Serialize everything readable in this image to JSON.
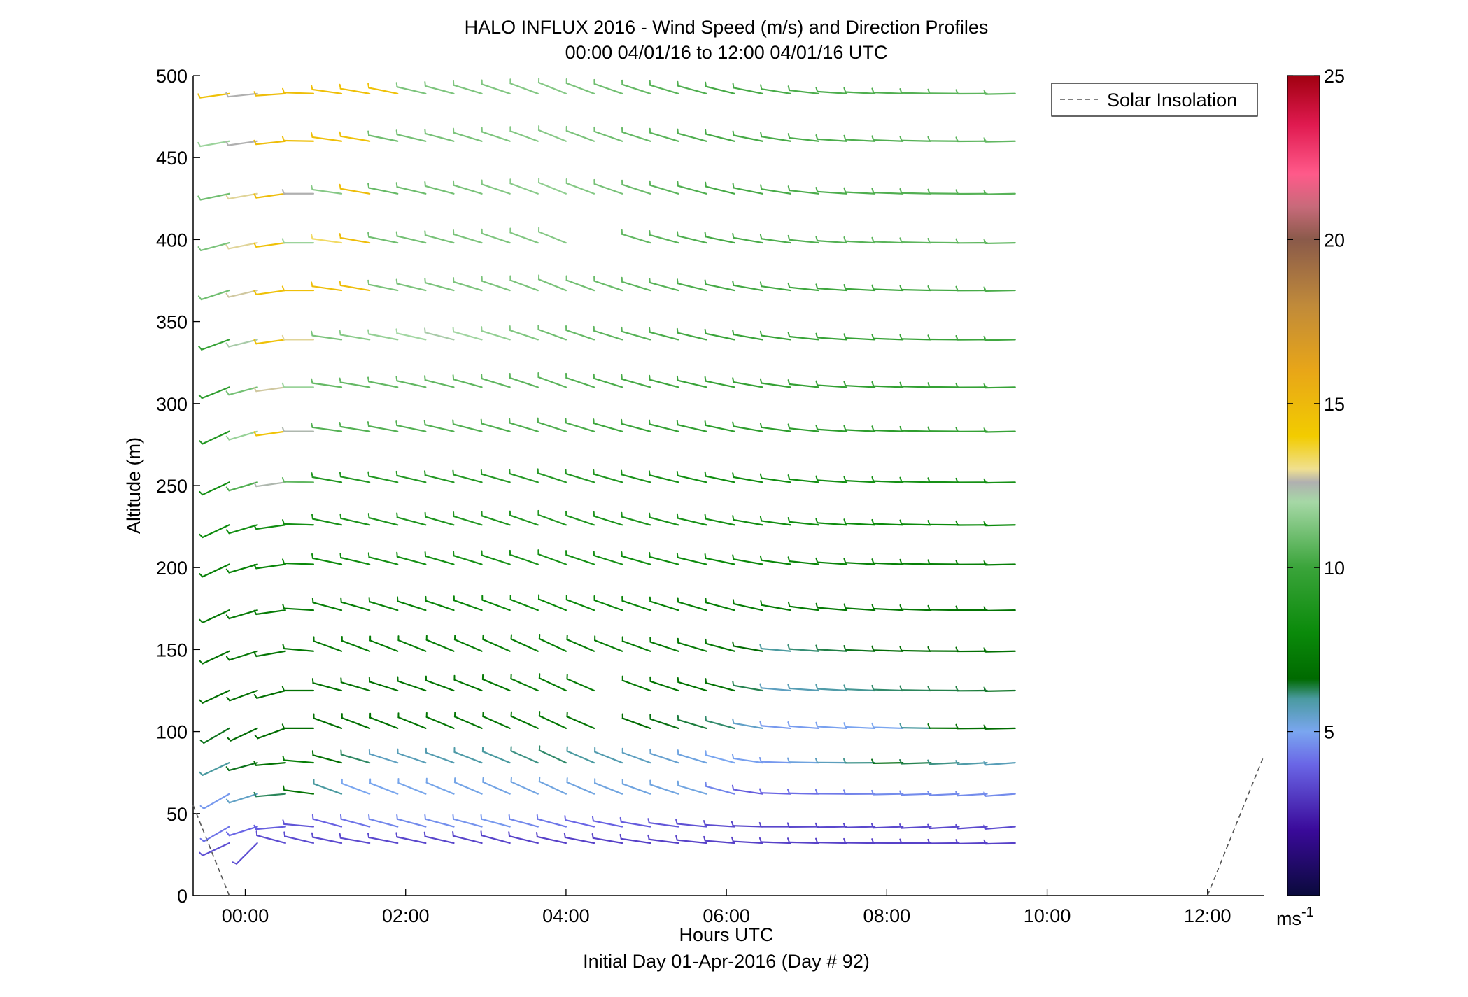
{
  "chart_data": {
    "type": "wind-barb",
    "title": "HALO INFLUX 2016 - Wind Speed (m/s) and Direction Profiles",
    "subtitle": "00:00 04/01/16 to 12:00 04/01/16  UTC",
    "xlabel": "Hours UTC",
    "xlabel2": "Initial Day 01-Apr-2016 (Day # 92)",
    "ylabel": "Altitude (m)",
    "xlim": [
      -0.65,
      12.7
    ],
    "ylim": [
      0,
      500
    ],
    "x_ticks": [
      0,
      2,
      4,
      6,
      8,
      10,
      12
    ],
    "x_tick_labels": [
      "00:00",
      "02:00",
      "04:00",
      "06:00",
      "08:00",
      "10:00",
      "12:00"
    ],
    "y_ticks": [
      0,
      50,
      100,
      150,
      200,
      250,
      300,
      350,
      400,
      450,
      500
    ],
    "y_tick_labels": [
      "0",
      "50",
      "100",
      "150",
      "200",
      "250",
      "300",
      "350",
      "400",
      "450",
      "500"
    ],
    "legend": {
      "label": "Solar Insolation",
      "placement": "top-right",
      "style": "dashed"
    },
    "colorbar": {
      "min": 0,
      "max": 25,
      "ticks": [
        5,
        10,
        15,
        20,
        25
      ],
      "tick_labels": [
        "5",
        "10",
        "15",
        "20",
        "25"
      ],
      "unit": "ms",
      "unit_exp": "-1",
      "stops": [
        [
          0,
          "#0a0a3c"
        ],
        [
          2,
          "#3a0a9a"
        ],
        [
          4,
          "#6a66e6"
        ],
        [
          5,
          "#7aa6f0"
        ],
        [
          6,
          "#4a9aa0"
        ],
        [
          6.6,
          "#006a00"
        ],
        [
          8,
          "#0a8a0a"
        ],
        [
          10,
          "#3aa43a"
        ],
        [
          12,
          "#a6d8a6"
        ],
        [
          12.6,
          "#b0b0b0"
        ],
        [
          13,
          "#f0e090"
        ],
        [
          14,
          "#f2cc00"
        ],
        [
          16,
          "#e8a618"
        ],
        [
          18,
          "#c08a3a"
        ],
        [
          20,
          "#8a5a4a"
        ],
        [
          21,
          "#c86a7a"
        ],
        [
          22,
          "#ff5a8a"
        ],
        [
          23.5,
          "#e01a50"
        ],
        [
          25,
          "#a00010"
        ]
      ]
    },
    "solar_insolation": {
      "left": [
        [
          -0.65,
          55
        ],
        [
          -0.2,
          0
        ]
      ],
      "right": [
        [
          12.0,
          0
        ],
        [
          12.7,
          85
        ]
      ]
    },
    "profile_times": [
      -0.2,
      0.15,
      0.5,
      0.85,
      1.2,
      1.55,
      1.9,
      2.25,
      2.6,
      2.95,
      3.3,
      3.65,
      4.0,
      4.35,
      4.7,
      5.05,
      5.4,
      5.75,
      6.1,
      6.45,
      6.8,
      7.15,
      7.5,
      7.85,
      8.2,
      8.55,
      8.9,
      9.25,
      9.6
    ],
    "altitudes": [
      32,
      42,
      62,
      81,
      102,
      125,
      149,
      174,
      202,
      226,
      252,
      283,
      310,
      339,
      369,
      398,
      428,
      460,
      489
    ],
    "gaps": [
      [
        398,
        [
          13,
          14
        ]
      ],
      [
        125,
        [
          14
        ]
      ],
      [
        102,
        [
          14
        ]
      ]
    ],
    "speed_by_altitude": [
      [
        [
          0,
          3.5
        ],
        [
          12,
          3.2
        ],
        [
          29,
          3.2
        ]
      ],
      [
        [
          0,
          4.2
        ],
        [
          3,
          3.6
        ],
        [
          6,
          4.5
        ],
        [
          10,
          4.8
        ],
        [
          13,
          4.0
        ],
        [
          19,
          3.3
        ],
        [
          29,
          3.4
        ]
      ],
      [
        [
          0,
          4.8
        ],
        [
          3,
          7.0
        ],
        [
          5,
          5.0
        ],
        [
          12,
          5.2
        ],
        [
          17,
          5.2
        ],
        [
          19,
          3.8
        ],
        [
          24,
          4.6
        ],
        [
          29,
          4.6
        ]
      ],
      [
        [
          0,
          6.0
        ],
        [
          3,
          7.5
        ],
        [
          6,
          5.6
        ],
        [
          12,
          6.2
        ],
        [
          18,
          5.0
        ],
        [
          20,
          4.8
        ],
        [
          24,
          6.5
        ],
        [
          29,
          5.5
        ]
      ],
      [
        [
          0,
          6.5
        ],
        [
          6,
          7.0
        ],
        [
          12,
          7.2
        ],
        [
          18,
          6.2
        ],
        [
          20,
          4.8
        ],
        [
          24,
          5.0
        ],
        [
          26,
          7.0
        ],
        [
          29,
          6.5
        ]
      ],
      [
        [
          0,
          6.8
        ],
        [
          6,
          7.0
        ],
        [
          12,
          7.4
        ],
        [
          18,
          7.0
        ],
        [
          20,
          5.6
        ],
        [
          24,
          6.2
        ],
        [
          29,
          6.5
        ]
      ],
      [
        [
          0,
          7.0
        ],
        [
          6,
          7.4
        ],
        [
          12,
          7.5
        ],
        [
          18,
          7.2
        ],
        [
          20,
          6.0
        ],
        [
          23,
          6.5
        ],
        [
          29,
          7.0
        ]
      ],
      [
        [
          0,
          7.2
        ],
        [
          6,
          7.6
        ],
        [
          12,
          8.0
        ],
        [
          18,
          7.5
        ],
        [
          24,
          7.2
        ],
        [
          29,
          7.0
        ]
      ],
      [
        [
          0,
          7.5
        ],
        [
          6,
          8.4
        ],
        [
          12,
          8.6
        ],
        [
          18,
          8.0
        ],
        [
          24,
          7.6
        ],
        [
          29,
          7.5
        ]
      ],
      [
        [
          0,
          8.0
        ],
        [
          6,
          8.8
        ],
        [
          12,
          9.0
        ],
        [
          18,
          8.4
        ],
        [
          24,
          8.0
        ],
        [
          29,
          8.0
        ]
      ],
      [
        [
          0,
          8.2
        ],
        [
          2,
          12.5
        ],
        [
          4,
          9.0
        ],
        [
          12,
          9.2
        ],
        [
          18,
          8.2
        ],
        [
          24,
          8.4
        ],
        [
          29,
          8.6
        ]
      ],
      [
        [
          0,
          9.0
        ],
        [
          2,
          14.5
        ],
        [
          4,
          10.5
        ],
        [
          12,
          10.4
        ],
        [
          18,
          9.5
        ],
        [
          24,
          9.4
        ],
        [
          29,
          10.0
        ]
      ],
      [
        [
          0,
          9.4
        ],
        [
          2,
          12.8
        ],
        [
          4,
          10.8
        ],
        [
          12,
          10.6
        ],
        [
          18,
          9.8
        ],
        [
          24,
          9.6
        ],
        [
          29,
          10.0
        ]
      ],
      [
        [
          0,
          9.8
        ],
        [
          2,
          14.6
        ],
        [
          4,
          11.2
        ],
        [
          8,
          12.2
        ],
        [
          12,
          11.0
        ],
        [
          18,
          10.0
        ],
        [
          24,
          9.8
        ],
        [
          29,
          10.2
        ]
      ],
      [
        [
          0,
          11.0
        ],
        [
          2,
          14.6
        ],
        [
          5,
          14.8
        ],
        [
          6,
          11.2
        ],
        [
          12,
          11.2
        ],
        [
          18,
          10.2
        ],
        [
          24,
          10.0
        ],
        [
          29,
          10.4
        ]
      ],
      [
        [
          0,
          11.2
        ],
        [
          2,
          14.6
        ],
        [
          3,
          11.8
        ],
        [
          5,
          14.8
        ],
        [
          6,
          11.0
        ],
        [
          12,
          11.4
        ],
        [
          18,
          10.2
        ],
        [
          24,
          10.6
        ],
        [
          29,
          10.8
        ]
      ],
      [
        [
          0,
          11.0
        ],
        [
          2,
          14.8
        ],
        [
          3,
          12.6
        ],
        [
          4,
          11.4
        ],
        [
          5,
          14.8
        ],
        [
          6,
          10.8
        ],
        [
          12,
          11.6
        ],
        [
          18,
          10.2
        ],
        [
          24,
          10.4
        ],
        [
          29,
          10.6
        ]
      ],
      [
        [
          0,
          11.8
        ],
        [
          1,
          12.6
        ],
        [
          2,
          14.8
        ],
        [
          5,
          14.6
        ],
        [
          6,
          11.0
        ],
        [
          12,
          11.4
        ],
        [
          18,
          10.2
        ],
        [
          24,
          10.4
        ],
        [
          29,
          10.8
        ]
      ],
      [
        [
          0,
          14.6
        ],
        [
          1,
          12.6
        ],
        [
          2,
          14.8
        ],
        [
          6,
          14.6
        ],
        [
          7,
          11.2
        ],
        [
          12,
          11.4
        ],
        [
          18,
          10.2
        ],
        [
          24,
          10.4
        ],
        [
          29,
          10.8
        ]
      ]
    ],
    "direction_by_altitude": [
      [
        [
          0,
          245
        ],
        [
          1,
          225
        ],
        [
          2,
          285
        ],
        [
          5,
          280
        ],
        [
          10,
          285
        ],
        [
          20,
          272
        ],
        [
          29,
          268
        ]
      ],
      [
        [
          0,
          240
        ],
        [
          2,
          265
        ],
        [
          4,
          285
        ],
        [
          12,
          285
        ],
        [
          20,
          270
        ],
        [
          29,
          265
        ]
      ],
      [
        [
          0,
          240
        ],
        [
          2,
          265
        ],
        [
          4,
          290
        ],
        [
          12,
          295
        ],
        [
          18,
          285
        ],
        [
          20,
          272
        ],
        [
          29,
          265
        ]
      ],
      [
        [
          0,
          245
        ],
        [
          2,
          265
        ],
        [
          4,
          285
        ],
        [
          12,
          295
        ],
        [
          18,
          285
        ],
        [
          20,
          272
        ],
        [
          29,
          265
        ]
      ],
      [
        [
          0,
          240
        ],
        [
          2,
          250
        ],
        [
          4,
          290
        ],
        [
          12,
          295
        ],
        [
          18,
          285
        ],
        [
          20,
          275
        ],
        [
          29,
          268
        ]
      ],
      [
        [
          0,
          245
        ],
        [
          2,
          255
        ],
        [
          4,
          285
        ],
        [
          12,
          295
        ],
        [
          18,
          285
        ],
        [
          20,
          275
        ],
        [
          29,
          268
        ]
      ],
      [
        [
          0,
          245
        ],
        [
          2,
          260
        ],
        [
          4,
          290
        ],
        [
          12,
          295
        ],
        [
          18,
          285
        ],
        [
          20,
          275
        ],
        [
          29,
          268
        ]
      ],
      [
        [
          0,
          245
        ],
        [
          2,
          262
        ],
        [
          4,
          285
        ],
        [
          12,
          292
        ],
        [
          18,
          285
        ],
        [
          22,
          275
        ],
        [
          29,
          268
        ]
      ],
      [
        [
          0,
          245
        ],
        [
          2,
          262
        ],
        [
          4,
          282
        ],
        [
          12,
          290
        ],
        [
          18,
          282
        ],
        [
          22,
          274
        ],
        [
          29,
          268
        ]
      ],
      [
        [
          0,
          245
        ],
        [
          2,
          262
        ],
        [
          4,
          282
        ],
        [
          12,
          290
        ],
        [
          18,
          282
        ],
        [
          22,
          274
        ],
        [
          29,
          268
        ]
      ],
      [
        [
          0,
          245
        ],
        [
          2,
          262
        ],
        [
          4,
          280
        ],
        [
          12,
          288
        ],
        [
          18,
          282
        ],
        [
          22,
          274
        ],
        [
          29,
          268
        ]
      ],
      [
        [
          0,
          245
        ],
        [
          2,
          262
        ],
        [
          4,
          278
        ],
        [
          12,
          288
        ],
        [
          18,
          282
        ],
        [
          22,
          274
        ],
        [
          29,
          268
        ]
      ],
      [
        [
          0,
          248
        ],
        [
          2,
          262
        ],
        [
          4,
          278
        ],
        [
          12,
          290
        ],
        [
          18,
          282
        ],
        [
          22,
          274
        ],
        [
          29,
          268
        ]
      ],
      [
        [
          0,
          250
        ],
        [
          2,
          262
        ],
        [
          4,
          278
        ],
        [
          12,
          290
        ],
        [
          18,
          282
        ],
        [
          22,
          274
        ],
        [
          29,
          268
        ]
      ],
      [
        [
          0,
          252
        ],
        [
          2,
          262
        ],
        [
          4,
          278
        ],
        [
          12,
          292
        ],
        [
          18,
          282
        ],
        [
          22,
          274
        ],
        [
          29,
          268
        ]
      ],
      [
        [
          0,
          255
        ],
        [
          2,
          262
        ],
        [
          4,
          278
        ],
        [
          12,
          292
        ],
        [
          18,
          282
        ],
        [
          22,
          274
        ],
        [
          29,
          268
        ]
      ],
      [
        [
          0,
          258
        ],
        [
          2,
          262
        ],
        [
          4,
          278
        ],
        [
          12,
          292
        ],
        [
          18,
          284
        ],
        [
          22,
          274
        ],
        [
          29,
          268
        ]
      ],
      [
        [
          0,
          260
        ],
        [
          2,
          264
        ],
        [
          4,
          278
        ],
        [
          12,
          292
        ],
        [
          18,
          284
        ],
        [
          22,
          274
        ],
        [
          29,
          268
        ]
      ],
      [
        [
          0,
          262
        ],
        [
          2,
          266
        ],
        [
          4,
          278
        ],
        [
          12,
          292
        ],
        [
          18,
          284
        ],
        [
          22,
          274
        ],
        [
          29,
          268
        ]
      ]
    ]
  }
}
